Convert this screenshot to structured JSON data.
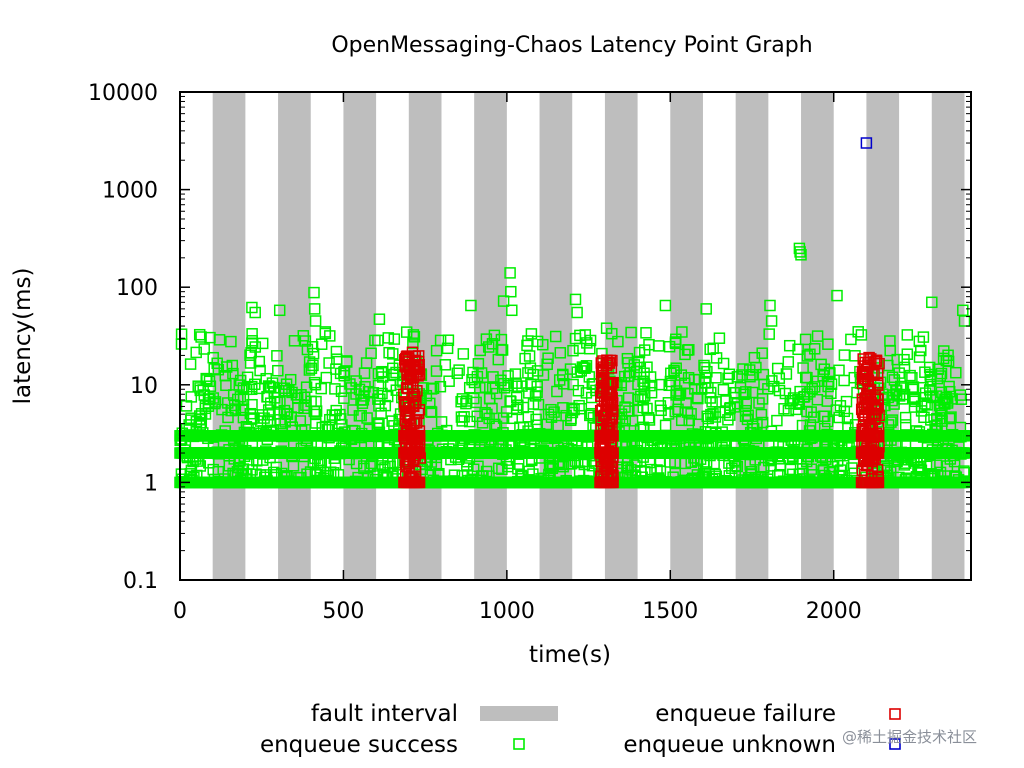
{
  "chart_data": {
    "type": "scatter",
    "title": "OpenMessaging-Chaos Latency Point Graph",
    "xlabel": "time(s)",
    "ylabel": "latency(ms)",
    "x_scale": "linear",
    "y_scale": "log",
    "xlim": [
      0,
      2420
    ],
    "ylim": [
      0.1,
      10000
    ],
    "x_ticks": [
      "0",
      "500",
      "1000",
      "1500",
      "2000"
    ],
    "x_tick_values": [
      0,
      500,
      1000,
      1500,
      2000
    ],
    "y_ticks": [
      "0.1",
      "1",
      "10",
      "100",
      "1000",
      "10000"
    ],
    "y_tick_values": [
      0.1,
      1,
      10,
      100,
      1000,
      10000
    ],
    "grid": false,
    "legend_position": "bottom",
    "fault_intervals": [
      [
        100,
        200
      ],
      [
        300,
        400
      ],
      [
        500,
        600
      ],
      [
        700,
        800
      ],
      [
        900,
        1000
      ],
      [
        1100,
        1200
      ],
      [
        1300,
        1400
      ],
      [
        1500,
        1600
      ],
      [
        1700,
        1800
      ],
      [
        1900,
        2000
      ],
      [
        2100,
        2200
      ],
      [
        2300,
        2400
      ]
    ],
    "series": [
      {
        "name": "enqueue success",
        "color": "#00ee00",
        "marker": "square-open",
        "baseline_bands_ms": [
          1,
          2,
          3
        ],
        "typical_range_ms": [
          1,
          15
        ],
        "outliers": [
          {
            "x": 5,
            "y": 33
          },
          {
            "x": 220,
            "y": 62
          },
          {
            "x": 230,
            "y": 55
          },
          {
            "x": 305,
            "y": 58
          },
          {
            "x": 410,
            "y": 88
          },
          {
            "x": 412,
            "y": 60
          },
          {
            "x": 415,
            "y": 45
          },
          {
            "x": 610,
            "y": 47
          },
          {
            "x": 890,
            "y": 65
          },
          {
            "x": 990,
            "y": 72
          },
          {
            "x": 1010,
            "y": 140
          },
          {
            "x": 1012,
            "y": 90
          },
          {
            "x": 1015,
            "y": 58
          },
          {
            "x": 1210,
            "y": 75
          },
          {
            "x": 1215,
            "y": 55
          },
          {
            "x": 1305,
            "y": 38
          },
          {
            "x": 1485,
            "y": 65
          },
          {
            "x": 1610,
            "y": 60
          },
          {
            "x": 1805,
            "y": 65
          },
          {
            "x": 1810,
            "y": 45
          },
          {
            "x": 1895,
            "y": 250
          },
          {
            "x": 1897,
            "y": 230
          },
          {
            "x": 1900,
            "y": 215
          },
          {
            "x": 2010,
            "y": 82
          },
          {
            "x": 2300,
            "y": 70
          },
          {
            "x": 2395,
            "y": 58
          },
          {
            "x": 2400,
            "y": 45
          }
        ]
      },
      {
        "name": "enqueue failure",
        "color": "#dd0000",
        "marker": "square-open",
        "bursts": [
          {
            "x_range": [
              685,
              735
            ],
            "y_range": [
              1,
              22
            ]
          },
          {
            "x_range": [
              1285,
              1325
            ],
            "y_range": [
              1,
              18
            ]
          },
          {
            "x_range": [
              2085,
              2140
            ],
            "y_range": [
              1,
              20
            ]
          }
        ]
      },
      {
        "name": "enqueue unknown",
        "color": "#0000cc",
        "marker": "square-open",
        "points": [
          {
            "x": 2100,
            "y": 3000
          }
        ]
      }
    ],
    "legend": {
      "fault_interval": "fault interval",
      "enqueue_success": "enqueue success",
      "enqueue_failure": "enqueue failure",
      "enqueue_unknown": "enqueue unknown"
    }
  },
  "watermark": "@稀土掘金技术社区",
  "colors": {
    "fault_band": "#bebebe",
    "success": "#00ee00",
    "failure": "#dd0000",
    "unknown": "#0000cc"
  }
}
